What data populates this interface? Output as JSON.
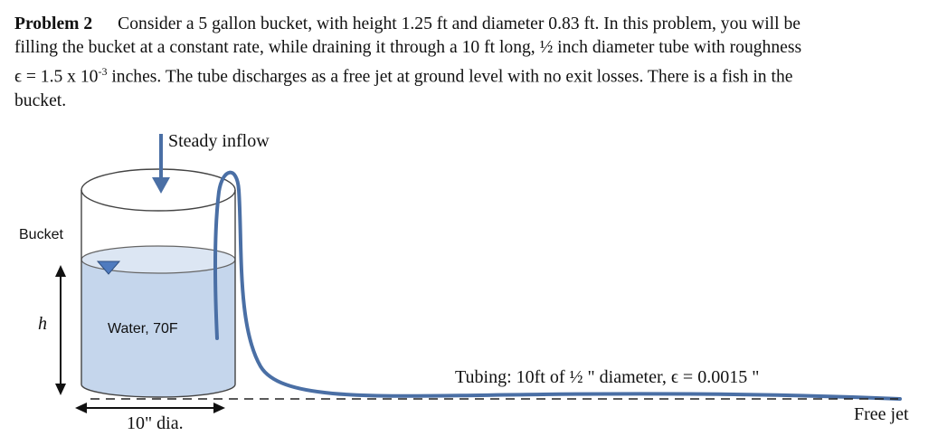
{
  "problem": {
    "label": "Problem 2",
    "line1": "Consider a 5 gallon bucket, with height 1.25 ft and diameter 0.83 ft.  In this problem, you will be",
    "line2": "filling the bucket at a constant rate, while draining it through a 10 ft long, ½ inch diameter tube with roughness",
    "line3_a": "ϵ = 1.5 x 10",
    "line3_exp": "-3",
    "line3_b": " inches.  The tube discharges as a free jet at ground level with no exit losses.  There is a fish in the",
    "line4": "bucket."
  },
  "figure": {
    "inflow_label": "Steady inflow",
    "bucket_label": "Bucket",
    "height_symbol": "h",
    "water_label": "Water, 70F",
    "diameter_label": "10\" dia.",
    "tubing_label": "Tubing: 10ft of ½ \" diameter, ϵ = 0.0015 \"",
    "jet_label": "Free jet",
    "colors": {
      "water_fill": "#c5d6ec",
      "water_surface": "#dce6f3",
      "tube_stroke": "#4a6fa5",
      "arrow_blue": "#4a6fa5",
      "outline": "#444444"
    }
  }
}
